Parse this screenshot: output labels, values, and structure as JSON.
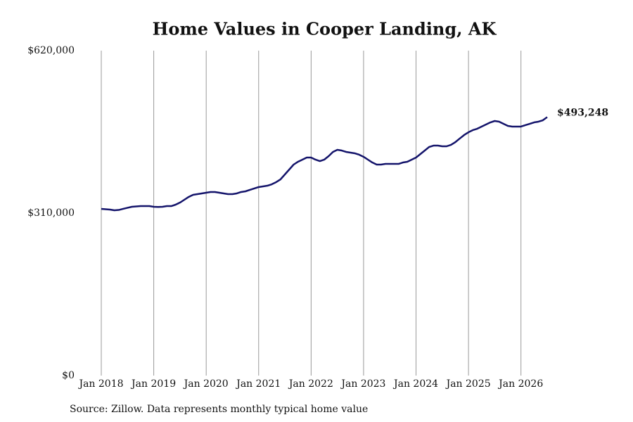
{
  "chart_data": {
    "type": "line",
    "title": "Home Values in Cooper Landing, AK",
    "source": "Source: Zillow. Data represents monthly typical home value",
    "color": "#14146b",
    "grid": "x",
    "x": [
      "2018-01",
      "2018-02",
      "2018-03",
      "2018-04",
      "2018-05",
      "2018-06",
      "2018-07",
      "2018-08",
      "2018-09",
      "2018-10",
      "2018-11",
      "2018-12",
      "2019-01",
      "2019-02",
      "2019-03",
      "2019-04",
      "2019-05",
      "2019-06",
      "2019-07",
      "2019-08",
      "2019-09",
      "2019-10",
      "2019-11",
      "2019-12",
      "2020-01",
      "2020-02",
      "2020-03",
      "2020-04",
      "2020-05",
      "2020-06",
      "2020-07",
      "2020-08",
      "2020-09",
      "2020-10",
      "2020-11",
      "2020-12",
      "2021-01",
      "2021-02",
      "2021-03",
      "2021-04",
      "2021-05",
      "2021-06",
      "2021-07",
      "2021-08",
      "2021-09",
      "2021-10",
      "2021-11",
      "2021-12",
      "2022-01",
      "2022-02",
      "2022-03",
      "2022-04",
      "2022-05",
      "2022-06",
      "2022-07",
      "2022-08",
      "2022-09",
      "2022-10",
      "2022-11",
      "2022-12",
      "2023-01",
      "2023-02",
      "2023-03",
      "2023-04",
      "2023-05",
      "2023-06",
      "2023-07",
      "2023-08",
      "2023-09",
      "2023-10",
      "2023-11",
      "2023-12",
      "2024-01",
      "2024-02",
      "2024-03",
      "2024-04",
      "2024-05",
      "2024-06",
      "2024-07",
      "2024-08",
      "2024-09",
      "2024-10",
      "2024-11",
      "2024-12",
      "2025-01",
      "2025-02",
      "2025-03",
      "2025-04",
      "2025-05",
      "2025-06",
      "2025-07",
      "2025-08",
      "2025-09",
      "2025-10",
      "2025-11",
      "2025-12",
      "2026-01",
      "2026-02",
      "2026-03",
      "2026-04",
      "2026-05",
      "2026-06",
      "2026-07"
    ],
    "values": [
      318100,
      317400,
      316700,
      315400,
      316000,
      318100,
      320100,
      322100,
      322800,
      323400,
      323400,
      323400,
      322100,
      321800,
      322100,
      323400,
      323400,
      326100,
      330100,
      335500,
      340900,
      344900,
      346200,
      347600,
      348900,
      350300,
      350300,
      348900,
      347600,
      346200,
      346200,
      347600,
      350300,
      351600,
      354300,
      357000,
      359700,
      361000,
      362300,
      365000,
      369100,
      374400,
      383800,
      393200,
      402600,
      408000,
      412000,
      416000,
      416000,
      412000,
      409300,
      412000,
      418700,
      426800,
      430800,
      429400,
      426800,
      425400,
      424100,
      421400,
      417400,
      412000,
      406600,
      402600,
      402600,
      403900,
      403900,
      403900,
      403900,
      406600,
      408000,
      412000,
      416000,
      422700,
      429400,
      436200,
      438800,
      438800,
      437500,
      437500,
      440200,
      445500,
      452300,
      459000,
      464300,
      468400,
      471000,
      475100,
      479100,
      483100,
      485800,
      484500,
      480400,
      476400,
      475100,
      475100,
      475100,
      477800,
      480400,
      483100,
      484500,
      487100,
      493248
    ],
    "value_labels": [
      null,
      null,
      null,
      null,
      null,
      null,
      null,
      null,
      null,
      null,
      null,
      null,
      null,
      null,
      null,
      null,
      null,
      null,
      null,
      null,
      null,
      null,
      null,
      null,
      null,
      null,
      null,
      null,
      null,
      null,
      null,
      null,
      null,
      null,
      null,
      null,
      null,
      null,
      null,
      null,
      null,
      null,
      null,
      null,
      null,
      null,
      null,
      null,
      null,
      null,
      null,
      null,
      null,
      null,
      null,
      null,
      null,
      null,
      null,
      null,
      null,
      null,
      null,
      null,
      null,
      null,
      null,
      null,
      null,
      null,
      null,
      null,
      null,
      null,
      null,
      null,
      null,
      null,
      null,
      null,
      null,
      null,
      null,
      null,
      null,
      null,
      null,
      null,
      null,
      null,
      null,
      null,
      null,
      null,
      null,
      null,
      null,
      null,
      null,
      null,
      null,
      null,
      "$493,248"
    ],
    "xlim": [
      "2018-01",
      "2026-07"
    ],
    "xticks": [
      {
        "value": "2018-01",
        "label": "Jan 2018"
      },
      {
        "value": "2019-01",
        "label": "Jan 2019"
      },
      {
        "value": "2020-01",
        "label": "Jan 2020"
      },
      {
        "value": "2021-01",
        "label": "Jan 2021"
      },
      {
        "value": "2022-01",
        "label": "Jan 2022"
      },
      {
        "value": "2023-01",
        "label": "Jan 2023"
      },
      {
        "value": "2024-01",
        "label": "Jan 2024"
      },
      {
        "value": "2025-01",
        "label": "Jan 2025"
      },
      {
        "value": "2026-01",
        "label": "Jan 2026"
      }
    ],
    "ylim": [
      0,
      620000
    ],
    "yticks": [
      {
        "value": 0,
        "label": "$0"
      },
      {
        "value": 310000,
        "label": "$310,000"
      },
      {
        "value": 620000,
        "label": "$620,000"
      }
    ]
  }
}
